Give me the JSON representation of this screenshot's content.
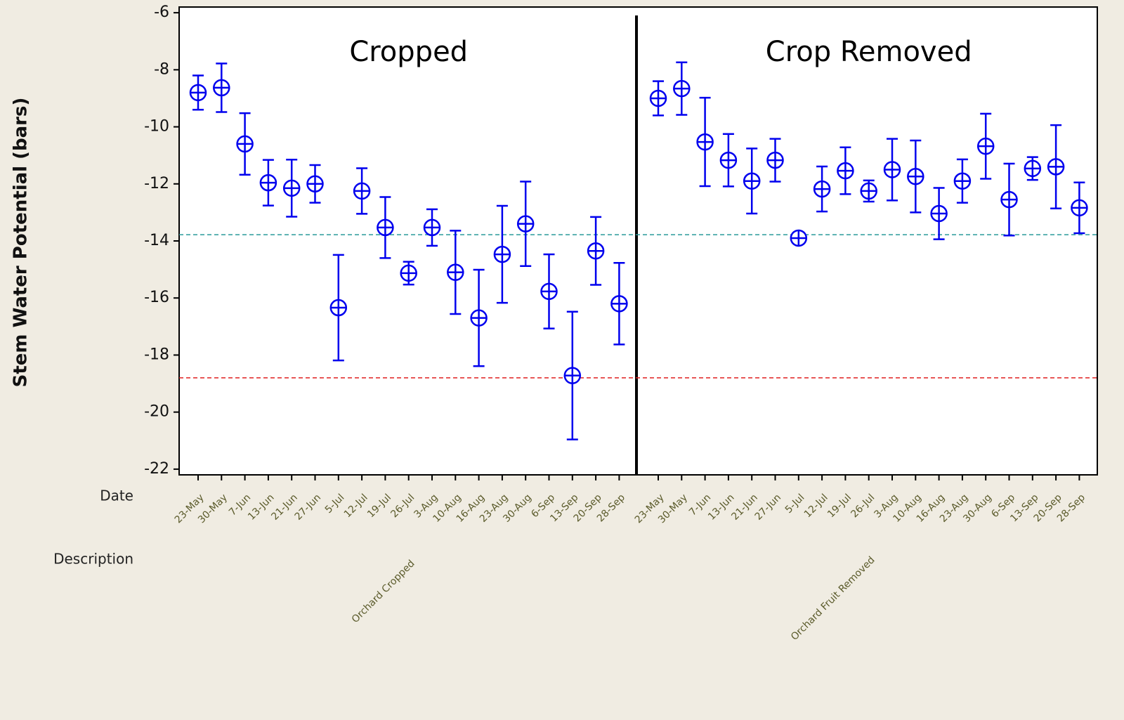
{
  "chart_data": {
    "type": "errorbar",
    "y_label": "Stem Water Potential (bars)",
    "x_row_labels": [
      "Date",
      "Description"
    ],
    "categories": [
      "23-May",
      "30-May",
      "7-Jun",
      "13-Jun",
      "21-Jun",
      "27-Jun",
      "5-Jul",
      "12-Jul",
      "19-Jul",
      "26-Jul",
      "3-Aug",
      "10-Aug",
      "16-Aug",
      "23-Aug",
      "30-Aug",
      "6-Sep",
      "13-Sep",
      "20-Sep",
      "28-Sep"
    ],
    "series": [
      {
        "name": "Cropped",
        "group_label": "Orchard Cropped",
        "color": "#0000ee",
        "values": [
          -8.8,
          -8.63,
          -10.6,
          -11.96,
          -12.15,
          -12.0,
          -16.34,
          -12.25,
          -13.53,
          -15.13,
          -13.53,
          -15.1,
          -16.7,
          -14.47,
          -13.4,
          -15.77,
          -18.72,
          -14.35,
          -16.2
        ],
        "errors": [
          0.6,
          0.85,
          1.08,
          0.8,
          1.0,
          0.66,
          1.85,
          0.8,
          1.07,
          0.4,
          0.64,
          1.46,
          1.69,
          1.7,
          1.48,
          1.3,
          2.24,
          1.19,
          1.43
        ]
      },
      {
        "name": "Crop Removed",
        "group_label": "Orchard Fruit Removed",
        "color": "#0000ee",
        "values": [
          -9.0,
          -8.66,
          -10.53,
          -11.17,
          -11.9,
          -11.17,
          -13.9,
          -12.18,
          -11.54,
          -12.25,
          -11.5,
          -11.74,
          -13.04,
          -11.9,
          -10.68,
          -12.55,
          -11.46,
          -11.4,
          -12.84
        ],
        "errors": [
          0.6,
          0.92,
          1.55,
          0.92,
          1.14,
          0.75,
          0.2,
          0.79,
          0.82,
          0.37,
          1.08,
          1.26,
          0.9,
          0.76,
          1.14,
          1.26,
          0.4,
          1.46,
          0.89
        ]
      }
    ],
    "reference_lines": [
      {
        "value": -13.78,
        "color": "#2a9a9a"
      },
      {
        "value": -18.8,
        "color": "#e02020"
      }
    ],
    "ylim": [
      -22.2,
      -5.8
    ],
    "yticks": [
      -6,
      -8,
      -10,
      -12,
      -14,
      -16,
      -18,
      -20,
      -22
    ]
  }
}
